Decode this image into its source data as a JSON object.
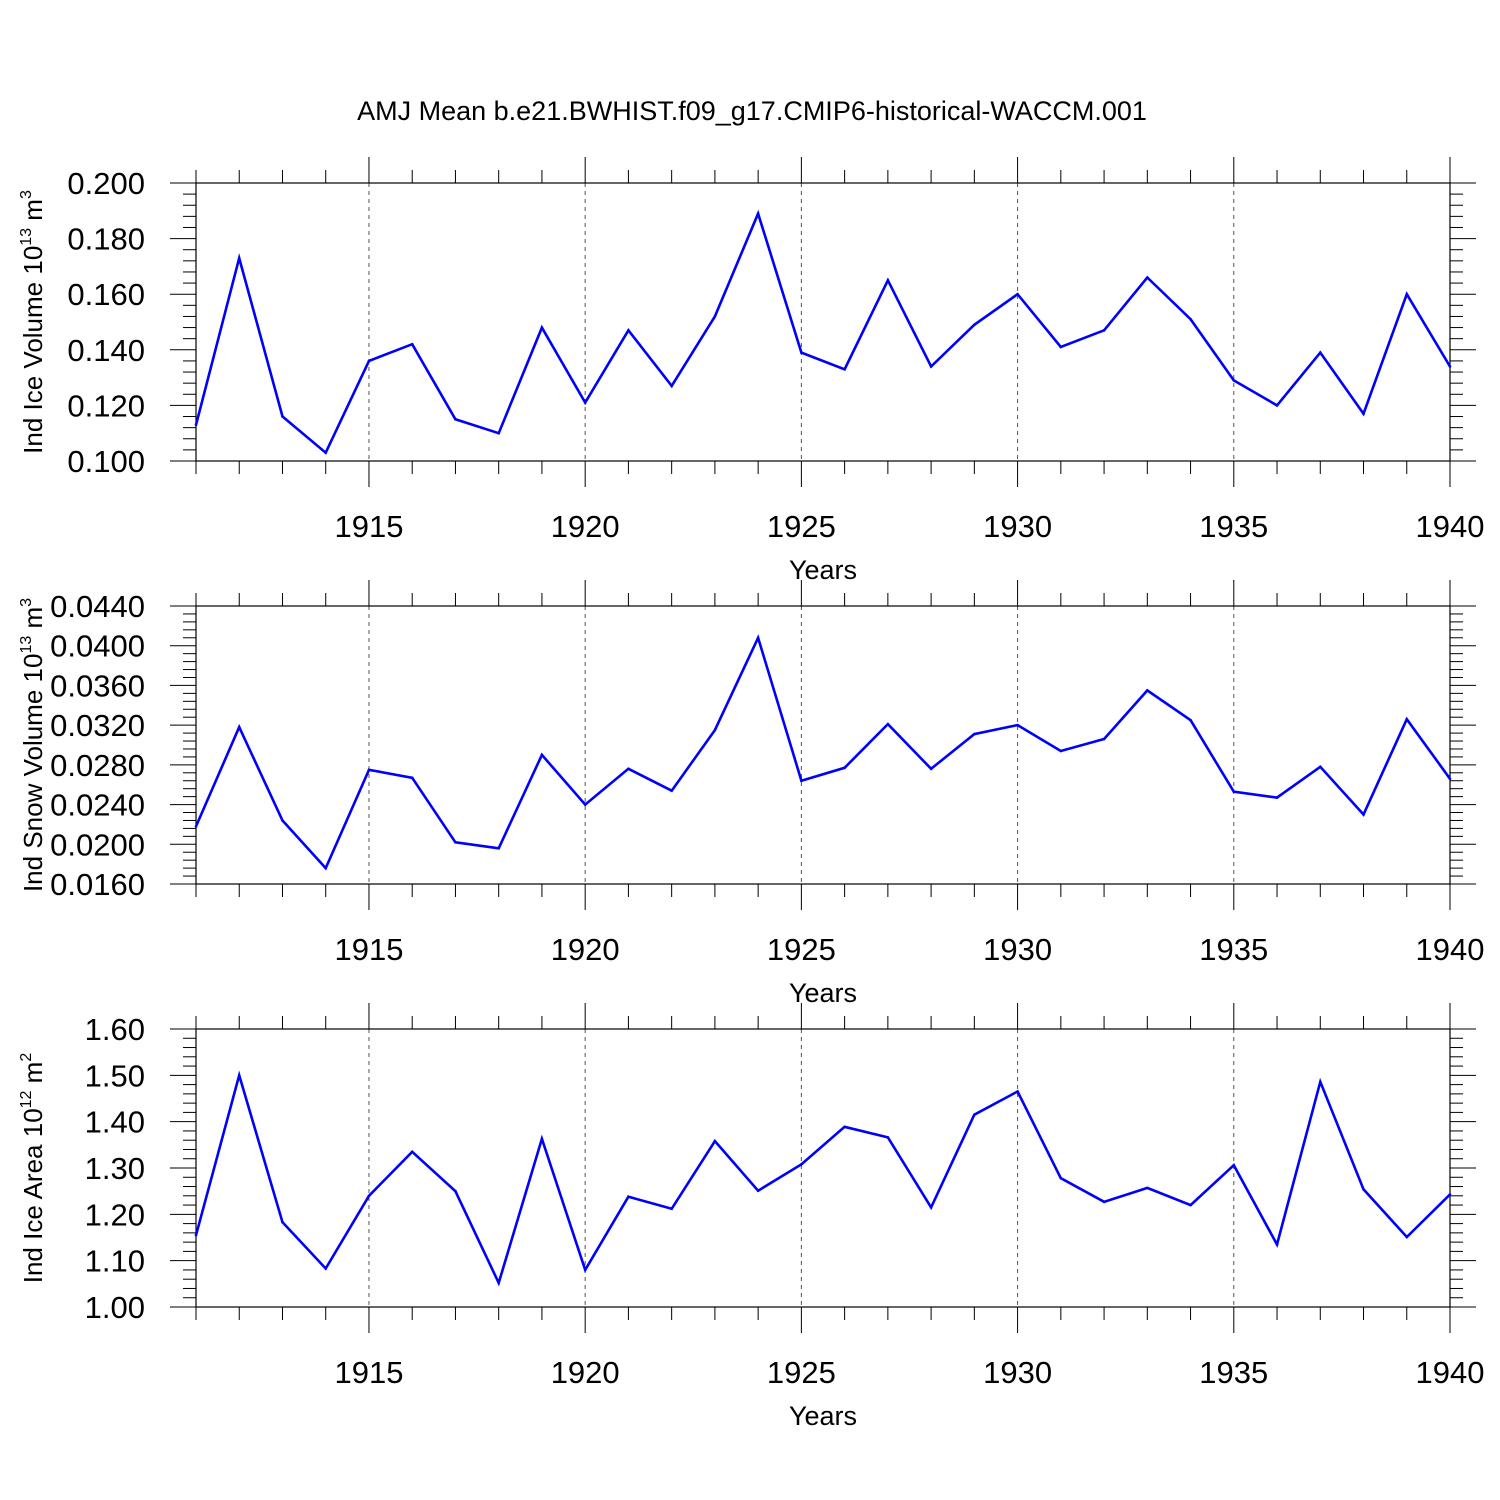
{
  "title": "AMJ Mean b.e21.BWHIST.f09_g17.CMIP6-historical-WACCM.001",
  "colors": {
    "line": "#0000ff",
    "axis": "#000000",
    "grid": "#555555"
  },
  "chart_data": [
    {
      "type": "line",
      "ylabel": "Ind Ice Volume 10",
      "ylabel_sup": "13",
      "ylabel_unit": "m",
      "ylabel_unit_sup": "3",
      "xlabel": "Years",
      "xlim": [
        1911,
        1940
      ],
      "ylim": [
        0.1,
        0.2
      ],
      "yticks": [
        "0.100",
        "0.120",
        "0.140",
        "0.160",
        "0.180",
        "0.200"
      ],
      "xticks": [
        "1915",
        "1920",
        "1925",
        "1930",
        "1935",
        "1940"
      ],
      "x": [
        1911,
        1912,
        1913,
        1914,
        1915,
        1916,
        1917,
        1918,
        1919,
        1920,
        1921,
        1922,
        1923,
        1924,
        1925,
        1926,
        1927,
        1928,
        1929,
        1930,
        1931,
        1932,
        1933,
        1934,
        1935,
        1936,
        1937,
        1938,
        1939,
        1940
      ],
      "values": [
        0.113,
        0.173,
        0.116,
        0.103,
        0.136,
        0.142,
        0.115,
        0.11,
        0.148,
        0.121,
        0.147,
        0.127,
        0.152,
        0.189,
        0.139,
        0.133,
        0.165,
        0.134,
        0.149,
        0.16,
        0.141,
        0.147,
        0.166,
        0.151,
        0.129,
        0.12,
        0.139,
        0.117,
        0.16,
        0.134
      ]
    },
    {
      "type": "line",
      "ylabel": "Ind Snow Volume 10",
      "ylabel_sup": "13",
      "ylabel_unit": "m",
      "ylabel_unit_sup": "3",
      "xlabel": "Years",
      "xlim": [
        1911,
        1940
      ],
      "ylim": [
        0.016,
        0.044
      ],
      "yticks": [
        "0.0160",
        "0.0200",
        "0.0240",
        "0.0280",
        "0.0320",
        "0.0360",
        "0.0400",
        "0.0440"
      ],
      "xticks": [
        "1915",
        "1920",
        "1925",
        "1930",
        "1935",
        "1940"
      ],
      "x": [
        1911,
        1912,
        1913,
        1914,
        1915,
        1916,
        1917,
        1918,
        1919,
        1920,
        1921,
        1922,
        1923,
        1924,
        1925,
        1926,
        1927,
        1928,
        1929,
        1930,
        1931,
        1932,
        1933,
        1934,
        1935,
        1936,
        1937,
        1938,
        1939,
        1940
      ],
      "values": [
        0.0218,
        0.0318,
        0.0224,
        0.0176,
        0.0275,
        0.0267,
        0.0202,
        0.0196,
        0.029,
        0.024,
        0.0276,
        0.0254,
        0.0315,
        0.0408,
        0.0264,
        0.0277,
        0.0321,
        0.0276,
        0.0311,
        0.032,
        0.0294,
        0.0306,
        0.0355,
        0.0325,
        0.0253,
        0.0247,
        0.0278,
        0.023,
        0.0326,
        0.0266
      ]
    },
    {
      "type": "line",
      "ylabel": "Ind Ice Area 10",
      "ylabel_sup": "12",
      "ylabel_unit": "m",
      "ylabel_unit_sup": "2",
      "xlabel": "Years",
      "xlim": [
        1911,
        1940
      ],
      "ylim": [
        1.0,
        1.6
      ],
      "yticks": [
        "1.00",
        "1.10",
        "1.20",
        "1.30",
        "1.40",
        "1.50",
        "1.60"
      ],
      "xticks": [
        "1915",
        "1920",
        "1925",
        "1930",
        "1935",
        "1940"
      ],
      "x": [
        1911,
        1912,
        1913,
        1914,
        1915,
        1916,
        1917,
        1918,
        1919,
        1920,
        1921,
        1922,
        1923,
        1924,
        1925,
        1926,
        1927,
        1928,
        1929,
        1930,
        1931,
        1932,
        1933,
        1934,
        1935,
        1936,
        1937,
        1938,
        1939,
        1940
      ],
      "values": [
        1.155,
        1.5,
        1.183,
        1.083,
        1.24,
        1.335,
        1.25,
        1.052,
        1.363,
        1.08,
        1.238,
        1.212,
        1.358,
        1.251,
        1.308,
        1.389,
        1.366,
        1.215,
        1.415,
        1.465,
        1.278,
        1.227,
        1.257,
        1.22,
        1.306,
        1.135,
        1.486,
        1.254,
        1.151,
        1.243
      ]
    }
  ]
}
